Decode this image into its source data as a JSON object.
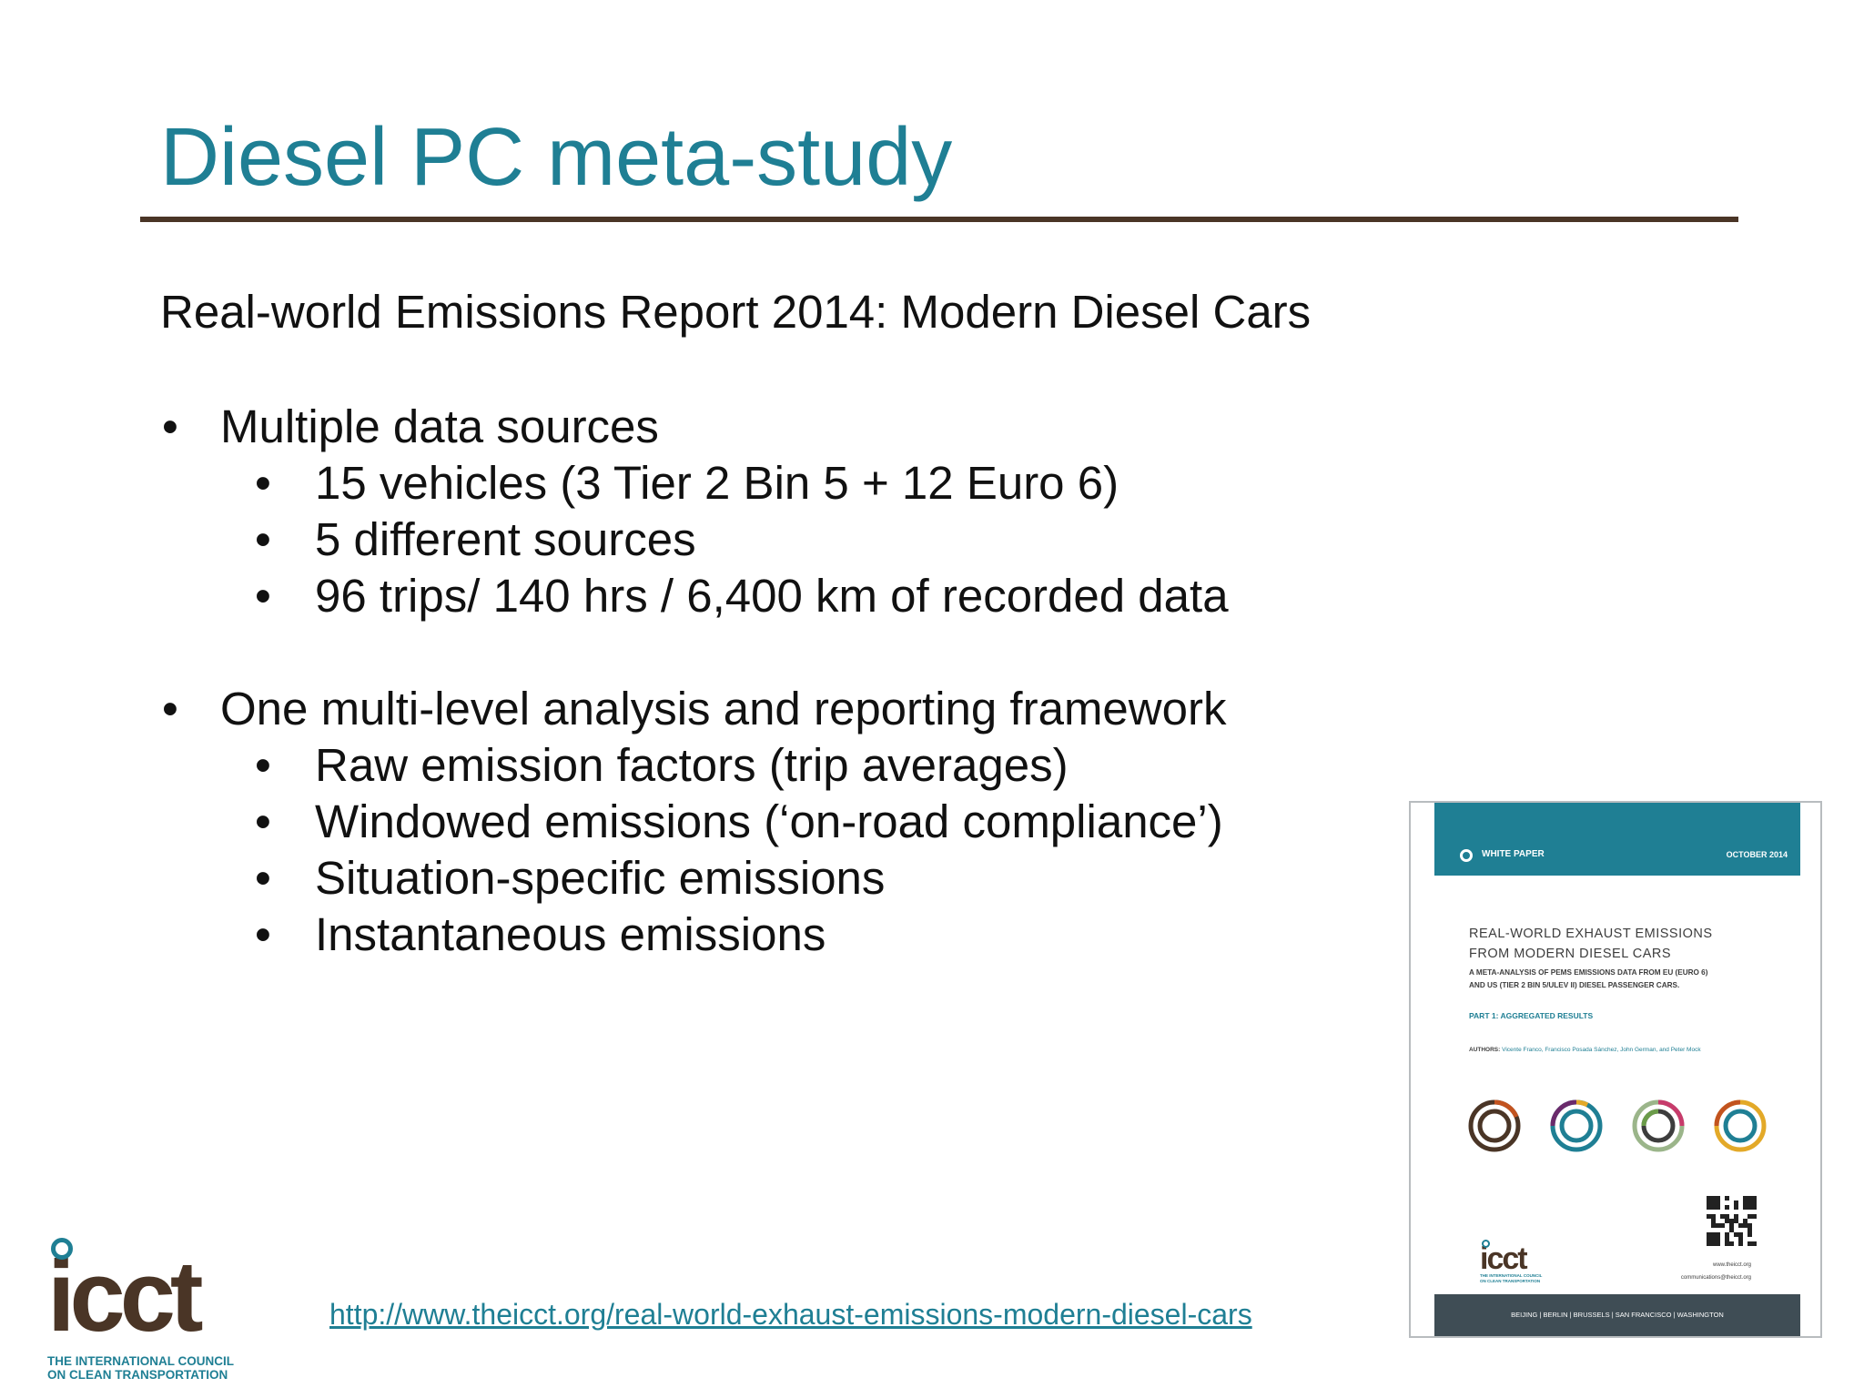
{
  "slide": {
    "title": "Diesel PC meta-study",
    "subtitle": "Real-world Emissions Report 2014: Modern Diesel Cars",
    "bullet_marker": "•",
    "bullets": [
      {
        "text": "Multiple data sources",
        "sub": [
          "15 vehicles (3 Tier 2 Bin 5 + 12 Euro 6)",
          "5 different sources",
          "96 trips/ 140 hrs / 6,400 km of recorded data"
        ]
      },
      {
        "text": "One multi-level analysis and reporting framework",
        "sub": [
          "Raw emission factors (trip averages)",
          "Windowed emissions (‘on-road compliance’)",
          "Situation-specific emissions",
          "Instantaneous emissions"
        ]
      }
    ],
    "link": "http://www.theicct.org/real-world-exhaust-emissions-modern-diesel-cars"
  },
  "logo": {
    "wordmark": "icct",
    "tagline_1": "THE INTERNATIONAL COUNCIL",
    "tagline_2": "ON CLEAN TRANSPORTATION"
  },
  "cover": {
    "band_left": "WHITE PAPER",
    "band_right": "OCTOBER 2014",
    "heading_1": "REAL-WORLD EXHAUST EMISSIONS",
    "heading_2": "FROM MODERN DIESEL CARS",
    "subheading_1": "A META-ANALYSIS OF PEMS EMISSIONS DATA FROM EU (EURO 6)",
    "subheading_2": "AND US (TIER 2 BIN 5/ULEV II) DIESEL PASSENGER CARS.",
    "part": "PART 1: AGGREGATED RESULTS",
    "authors_label": "AUTHORS:",
    "authors": "Vicente Franco, Francisco Posada Sánchez, John German, and Peter Mock",
    "logo_word": "icct",
    "logo_tag_1": "THE INTERNATIONAL COUNCIL",
    "logo_tag_2": "ON CLEAN TRANSPORTATION",
    "website": "www.theicct.org",
    "email": "communications@theicct.org",
    "cities": "BEIJING   |   BERLIN   |   BRUSSELS   |   SAN FRANCISCO   |   WASHINGTON"
  },
  "colors": {
    "accent": "#1f7f94",
    "brown": "#4a3526",
    "footer": "#3f4d55"
  }
}
